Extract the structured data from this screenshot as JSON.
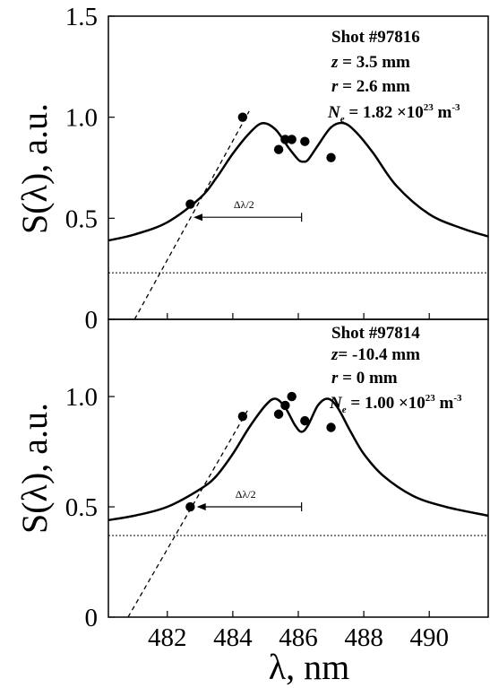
{
  "chart_data": [
    {
      "type": "line",
      "id": "top",
      "ylabel": "S(λ), a.u.",
      "xlabel": "",
      "xlim": [
        480.2,
        491.8
      ],
      "ylim": [
        0,
        1.5
      ],
      "y_ticks": [
        {
          "value": 0,
          "label": "0"
        },
        {
          "value": 0.5,
          "label": "0.5"
        },
        {
          "value": 1.0,
          "label": "1.0"
        },
        {
          "value": 1.5,
          "label": "1.5"
        }
      ],
      "x_ticks": [
        482,
        484,
        486,
        488,
        490
      ],
      "annotations": {
        "shot": "Shot #97816",
        "z_sym": "z",
        "z_val": " = 3.5 mm",
        "r_sym": "r",
        "r_val": " = 2.6 mm",
        "ne_sym": "N",
        "ne_sub": "e",
        "ne_val": " = 1.82 ×10",
        "ne_exp": "23",
        "ne_unit": " m",
        "ne_unit_exp": "-3"
      },
      "delta_label": "Δλ/2",
      "fit_curve": {
        "x": [
          480.2,
          481.0,
          482.0,
          483.0,
          483.5,
          484.0,
          484.5,
          484.9,
          485.3,
          485.7,
          486.0,
          486.15,
          486.3,
          486.6,
          487.0,
          487.4,
          487.8,
          488.3,
          489.0,
          490.0,
          491.0,
          491.8
        ],
        "y": [
          0.39,
          0.42,
          0.48,
          0.6,
          0.7,
          0.82,
          0.92,
          0.97,
          0.94,
          0.85,
          0.79,
          0.78,
          0.79,
          0.86,
          0.95,
          0.97,
          0.92,
          0.82,
          0.66,
          0.52,
          0.45,
          0.41
        ]
      },
      "measured_points": {
        "x": [
          482.7,
          484.3,
          485.4,
          485.6,
          485.8,
          486.2,
          487.0
        ],
        "y": [
          0.57,
          1.0,
          0.84,
          0.89,
          0.89,
          0.88,
          0.8
        ]
      },
      "tangent_line": {
        "x": [
          481.0,
          484.5
        ],
        "y": [
          0.0,
          1.03
        ]
      },
      "baseline_level": 0.23,
      "half_width_arrow": {
        "from_x": 486.1,
        "to_x": 482.8,
        "y": 0.505
      }
    },
    {
      "type": "line",
      "id": "bottom",
      "ylabel": "S(λ), a.u.",
      "xlabel": "λ, nm",
      "xlim": [
        480.2,
        491.8
      ],
      "ylim": [
        0,
        1.35
      ],
      "y_ticks": [
        {
          "value": 0,
          "label": "0"
        },
        {
          "value": 0.5,
          "label": "0.5"
        },
        {
          "value": 1.0,
          "label": "1.0"
        }
      ],
      "x_ticks": [
        {
          "value": 482,
          "label": "482"
        },
        {
          "value": 484,
          "label": "484"
        },
        {
          "value": 486,
          "label": "486"
        },
        {
          "value": 488,
          "label": "488"
        },
        {
          "value": 490,
          "label": "490"
        }
      ],
      "annotations": {
        "shot": "Shot #97814",
        "z_sym": "z",
        "z_val": "= -10.4 mm",
        "r_sym": "r",
        "r_val": " = 0 mm",
        "ne_sym": "N",
        "ne_sub": "e",
        "ne_val": " = 1.00 ×10",
        "ne_exp": "23",
        "ne_unit": " m",
        "ne_unit_exp": "-3"
      },
      "delta_label": "Δλ/2",
      "fit_curve": {
        "x": [
          480.2,
          481.0,
          482.0,
          483.0,
          483.5,
          484.0,
          484.5,
          485.0,
          485.3,
          485.6,
          485.9,
          486.1,
          486.3,
          486.6,
          486.9,
          487.2,
          487.6,
          488.0,
          488.6,
          489.5,
          490.5,
          491.8
        ],
        "y": [
          0.44,
          0.46,
          0.5,
          0.58,
          0.64,
          0.74,
          0.86,
          0.96,
          0.99,
          0.95,
          0.87,
          0.84,
          0.87,
          0.96,
          0.99,
          0.95,
          0.84,
          0.74,
          0.64,
          0.55,
          0.5,
          0.46
        ]
      },
      "measured_points": {
        "x": [
          482.7,
          484.3,
          485.4,
          485.6,
          485.8,
          486.2,
          487.0
        ],
        "y": [
          0.5,
          0.91,
          0.92,
          0.96,
          1.0,
          0.89,
          0.86
        ]
      },
      "tangent_line": {
        "x": [
          480.8,
          484.5
        ],
        "y": [
          0.0,
          0.95
        ]
      },
      "baseline_level": 0.37,
      "half_width_arrow": {
        "from_x": 486.1,
        "to_x": 482.9,
        "y": 0.5
      }
    }
  ]
}
